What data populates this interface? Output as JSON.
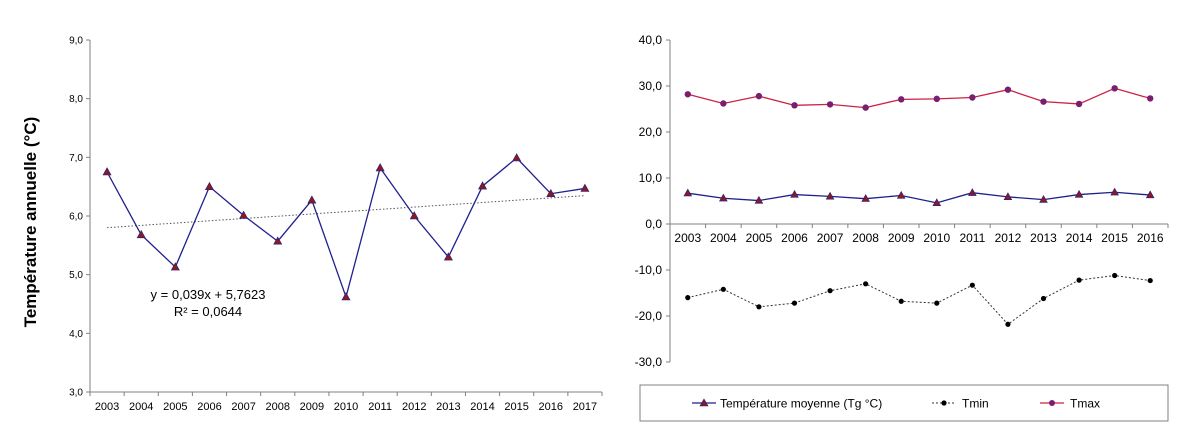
{
  "colors": {
    "line_blue": "#1f1f8f",
    "marker_dark_red": "#8b1a1a",
    "trend_dotted": "#555555",
    "tmin_dotted": "#333333",
    "tmax_red": "#cc2244",
    "tmax_marker": "#7a1f6e",
    "axis": "#808080",
    "text": "#000000"
  },
  "chart_data": [
    {
      "type": "line",
      "title": "",
      "xlabel": "",
      "ylabel": "Température annuelle (°C)",
      "categories": [
        "2003",
        "2004",
        "2005",
        "2006",
        "2007",
        "2008",
        "2009",
        "2010",
        "2011",
        "2012",
        "2013",
        "2014",
        "2015",
        "2016",
        "2017"
      ],
      "ylim": [
        3.0,
        9.0
      ],
      "yticks": [
        "3,0",
        "4,0",
        "5,0",
        "6,0",
        "7,0",
        "8,0",
        "9,0"
      ],
      "series": [
        {
          "values": [
            6.75,
            5.68,
            5.13,
            6.5,
            6.01,
            5.57,
            6.27,
            4.62,
            6.82,
            6.0,
            5.3,
            6.51,
            6.99,
            6.38,
            6.47
          ]
        }
      ],
      "trendline": {
        "slope": 0.039,
        "intercept": 5.7623,
        "equation_label": "y = 0,039x + 5,7623",
        "r2_label": "R² = 0,0644"
      },
      "grid": false
    },
    {
      "type": "line",
      "title": "",
      "xlabel": "",
      "ylabel": "",
      "categories": [
        "2003",
        "2004",
        "2005",
        "2006",
        "2007",
        "2008",
        "2009",
        "2010",
        "2011",
        "2012",
        "2013",
        "2014",
        "2015",
        "2016"
      ],
      "ylim": [
        -30.0,
        40.0
      ],
      "yticks": [
        "-30,0",
        "-20,0",
        "-10,0",
        "0,0",
        "10,0",
        "20,0",
        "30,0",
        "40,0"
      ],
      "series": [
        {
          "name": "Température moyenne (Tg °C)",
          "values": [
            6.7,
            5.6,
            5.1,
            6.4,
            6.0,
            5.5,
            6.2,
            4.6,
            6.8,
            5.9,
            5.3,
            6.4,
            6.9,
            6.3
          ]
        },
        {
          "name": "Tmin",
          "values": [
            -16.0,
            -14.2,
            -18.0,
            -17.2,
            -14.5,
            -13.0,
            -16.8,
            -17.2,
            -13.3,
            -21.8,
            -16.2,
            -12.2,
            -11.2,
            -12.3
          ]
        },
        {
          "name": "Tmax",
          "values": [
            28.2,
            26.2,
            27.8,
            25.8,
            26.0,
            25.3,
            27.1,
            27.2,
            27.5,
            29.2,
            26.6,
            26.1,
            29.5,
            27.3
          ]
        }
      ],
      "legend_position": "bottom",
      "grid": false
    }
  ]
}
